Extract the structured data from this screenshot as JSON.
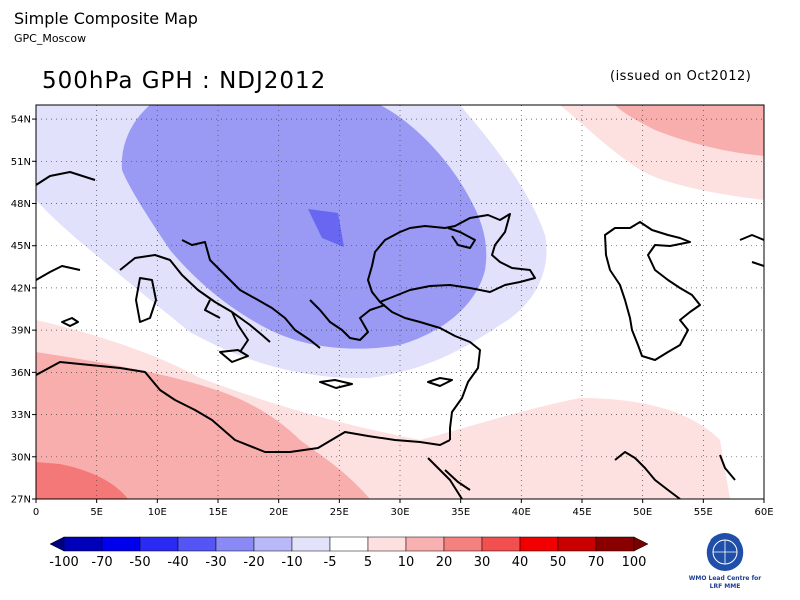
{
  "header": {
    "title": "Simple Composite Map",
    "subtitle": "GPC_Moscow"
  },
  "map": {
    "title": "500hPa GPH : NDJ2012",
    "issued": "(issued on Oct2012)",
    "lon_ticks": [
      "0",
      "5E",
      "10E",
      "15E",
      "20E",
      "25E",
      "30E",
      "35E",
      "40E",
      "45E",
      "50E",
      "55E",
      "60E"
    ],
    "lat_ticks": [
      "54N",
      "51N",
      "48N",
      "45N",
      "42N",
      "39N",
      "36N",
      "33N",
      "30N",
      "27N"
    ],
    "lon_range": [
      0,
      60
    ],
    "lat_range": [
      27,
      55
    ],
    "grid": "dotted"
  },
  "colorbar": {
    "labels": [
      "-100",
      "-70",
      "-50",
      "-40",
      "-30",
      "-20",
      "-10",
      "-5",
      "5",
      "10",
      "20",
      "30",
      "40",
      "50",
      "70",
      "100"
    ],
    "colors": [
      "#00007f",
      "#0000b8",
      "#0000ee",
      "#2a2af2",
      "#5555f5",
      "#8a8af7",
      "#b9b9f9",
      "#e2e2fb",
      "#ffffff",
      "#fde0e0",
      "#f9b0b0",
      "#f48080",
      "#f25050",
      "#f20000",
      "#c80000",
      "#8a0000",
      "#7a0000"
    ]
  },
  "logo": {
    "lines": [
      "WMO Lead Centre for",
      "LRF MME"
    ]
  },
  "colors": {
    "neg_light": "#e1e1fb",
    "neg_mid": "#9a9af5",
    "neg_strong": "#6767f1",
    "pos_light": "#fde0e0",
    "pos_mid": "#f9aeae",
    "pos_strong": "#f47878",
    "coast": "#000000"
  }
}
